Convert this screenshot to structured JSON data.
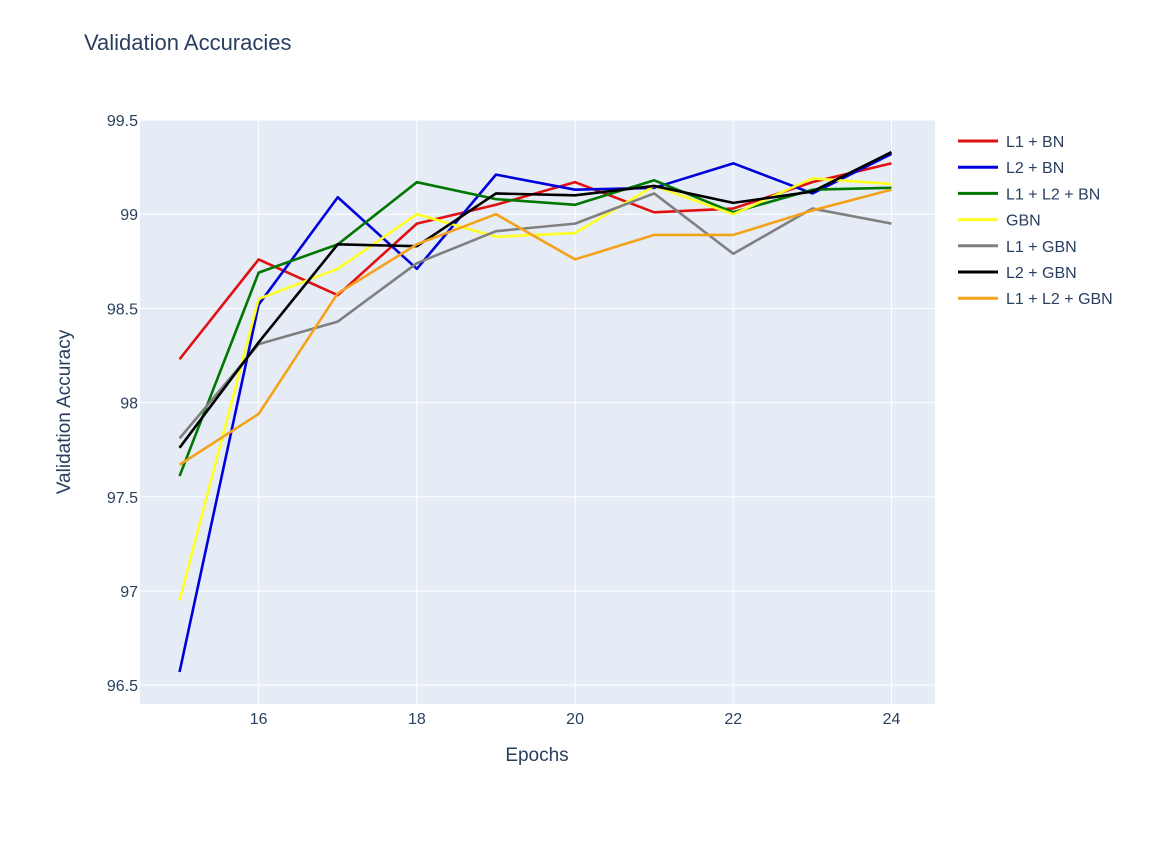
{
  "chart_data": {
    "type": "line",
    "title": "Validation Accuracies",
    "xlabel": "Epochs",
    "ylabel": "Validation Accuracy",
    "x": [
      15,
      16,
      17,
      18,
      19,
      20,
      21,
      22,
      23,
      24
    ],
    "xlim": [
      14.5,
      24.55
    ],
    "ylim": [
      96.4,
      99.5
    ],
    "x_ticks": [
      16,
      18,
      20,
      22,
      24
    ],
    "y_ticks": [
      96.5,
      97,
      97.5,
      98,
      98.5,
      99,
      99.5
    ],
    "x_tick_labels": [
      "16",
      "18",
      "20",
      "22",
      "24"
    ],
    "y_tick_labels": [
      "96.5",
      "97",
      "97.5",
      "98",
      "98.5",
      "99",
      "99.5"
    ],
    "grid": true,
    "legend_position": "right",
    "series": [
      {
        "name": "L1 + BN",
        "color": "#e01010",
        "values": [
          98.23,
          98.76,
          98.57,
          98.95,
          99.05,
          99.17,
          99.01,
          99.03,
          99.17,
          99.27
        ]
      },
      {
        "name": "L2 + BN",
        "color": "#0000dd",
        "values": [
          96.57,
          98.52,
          99.09,
          98.71,
          99.21,
          99.13,
          99.14,
          99.27,
          99.11,
          99.32
        ]
      },
      {
        "name": "L1 + L2 + BN",
        "color": "#007700",
        "values": [
          97.61,
          98.69,
          98.84,
          99.17,
          99.08,
          99.05,
          99.18,
          99.01,
          99.13,
          99.14
        ]
      },
      {
        "name": "GBN",
        "color": "#ffff22",
        "values": [
          96.95,
          98.55,
          98.71,
          99.0,
          98.88,
          98.9,
          99.15,
          99.0,
          99.19,
          99.16
        ]
      },
      {
        "name": "L1 + GBN",
        "color": "#808080",
        "values": [
          97.81,
          98.31,
          98.43,
          98.74,
          98.91,
          98.95,
          99.11,
          98.79,
          99.03,
          98.95
        ]
      },
      {
        "name": "L2 + GBN",
        "color": "#000000",
        "values": [
          97.76,
          98.32,
          98.84,
          98.83,
          99.11,
          99.1,
          99.15,
          99.06,
          99.12,
          99.33
        ]
      },
      {
        "name": "L1 + L2 + GBN",
        "color": "#f5a21b",
        "values": [
          97.67,
          97.94,
          98.58,
          98.84,
          99.0,
          98.76,
          98.89,
          98.89,
          99.02,
          99.13
        ]
      }
    ]
  },
  "colors": {
    "plot_background": "#e5ecf6",
    "grid": "#ffffff",
    "text": "#2a3f5f"
  }
}
